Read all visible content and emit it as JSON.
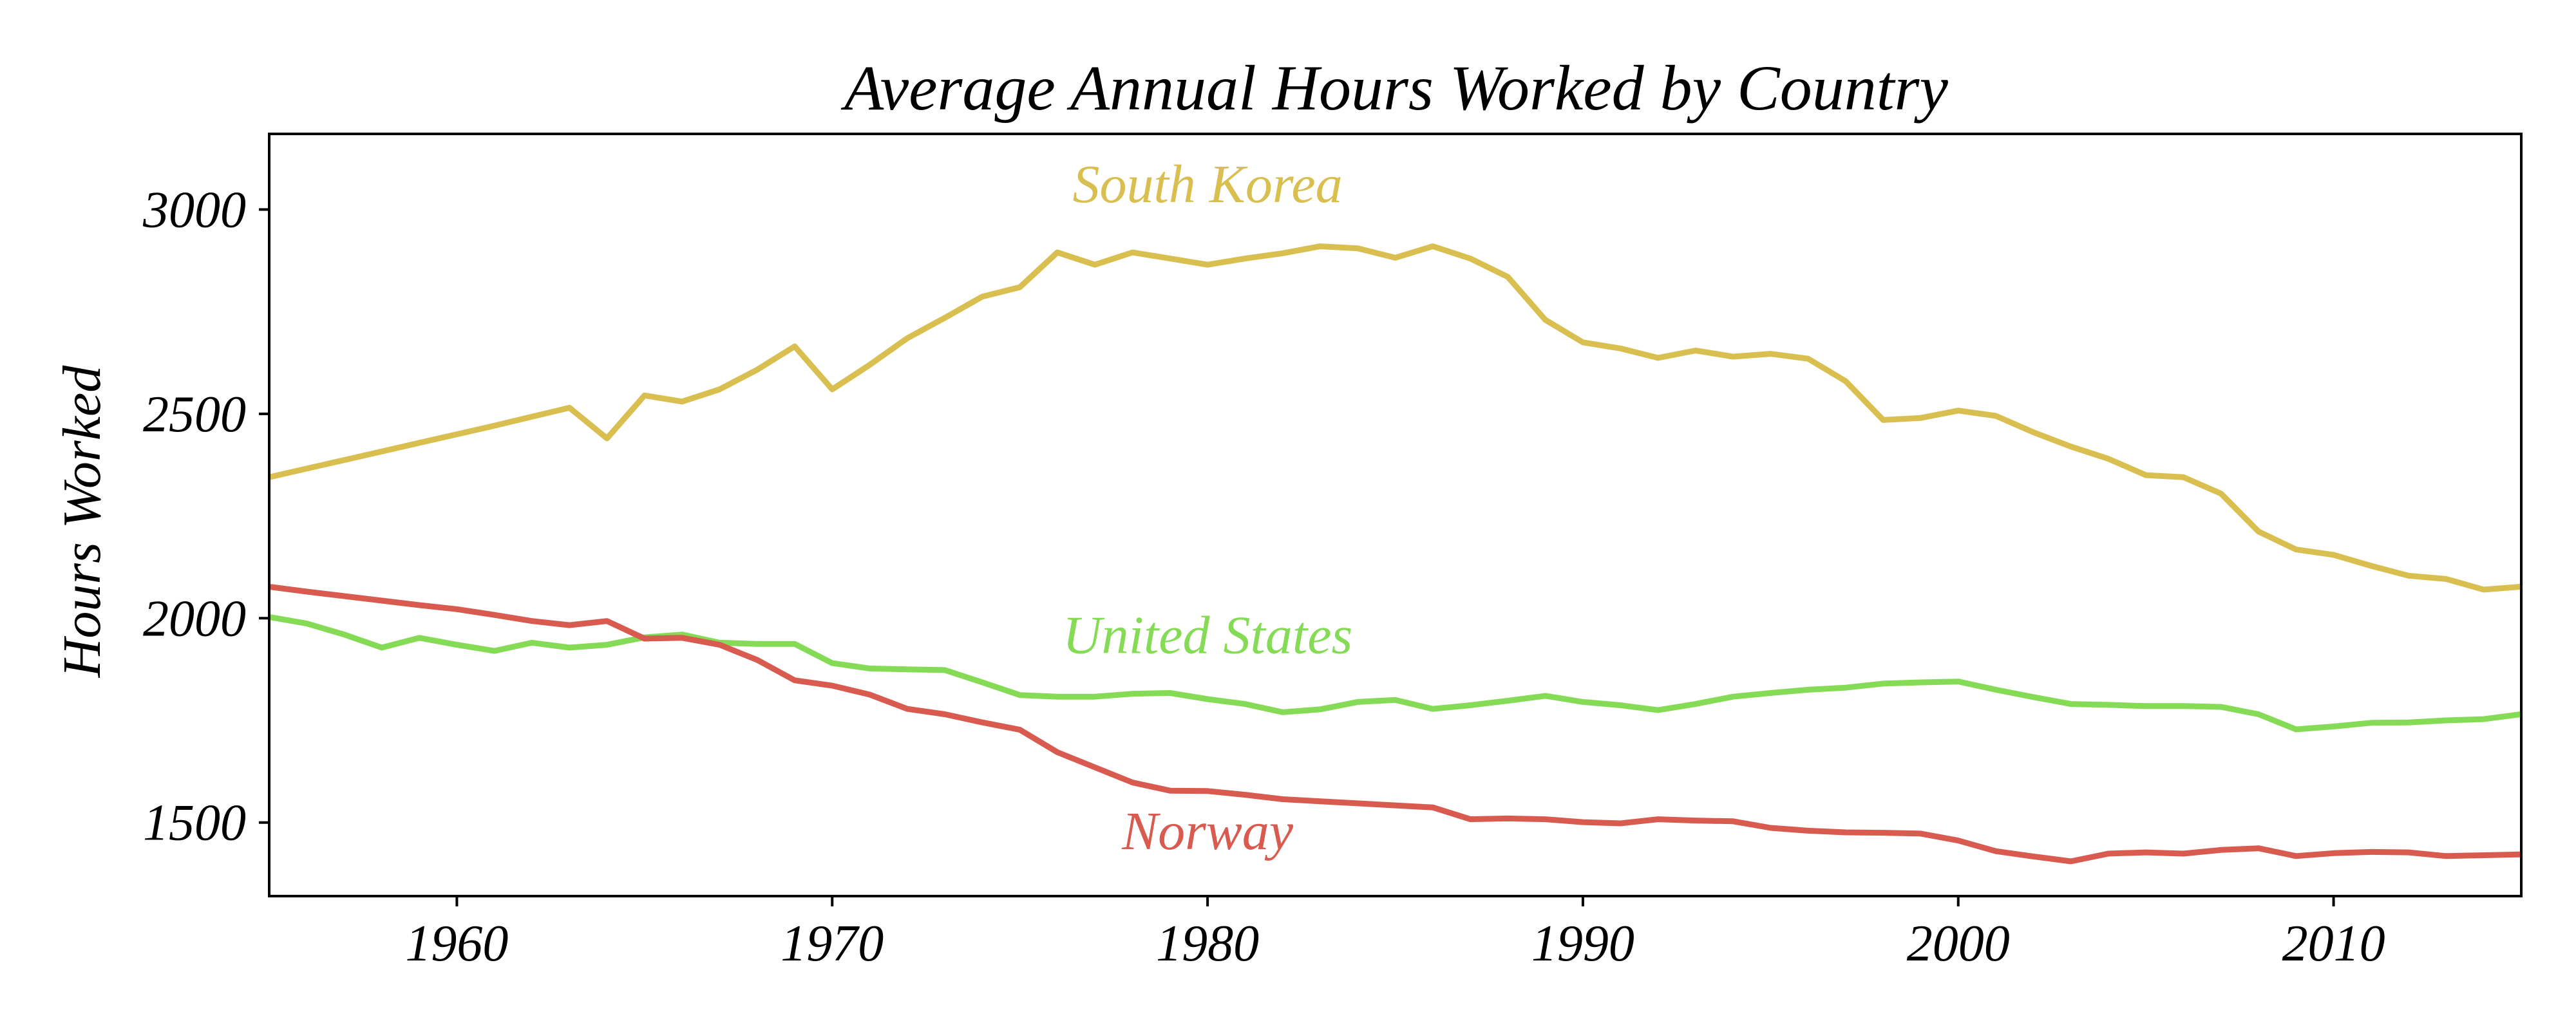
{
  "chart_data": {
    "type": "line",
    "title": "Average Annual Hours Worked by Country",
    "xlabel": "",
    "ylabel": "Hours Worked",
    "xlim": [
      1955,
      2015
    ],
    "ylim": [
      1320,
      3185
    ],
    "xticks": [
      1960,
      1970,
      1980,
      1990,
      2000,
      2010
    ],
    "yticks": [
      1500,
      2000,
      2500,
      3000
    ],
    "grid": false,
    "legend": "inline labels",
    "x": [
      1955,
      1956,
      1957,
      1958,
      1959,
      1960,
      1961,
      1962,
      1963,
      1964,
      1965,
      1966,
      1967,
      1968,
      1969,
      1970,
      1971,
      1972,
      1973,
      1974,
      1975,
      1976,
      1977,
      1978,
      1979,
      1980,
      1981,
      1982,
      1983,
      1984,
      1985,
      1986,
      1987,
      1988,
      1989,
      1990,
      1991,
      1992,
      1993,
      1994,
      1995,
      1996,
      1997,
      1998,
      1999,
      2000,
      2001,
      2002,
      2003,
      2004,
      2005,
      2006,
      2007,
      2008,
      2009,
      2010,
      2011,
      2012,
      2013,
      2014,
      2015
    ],
    "series": [
      {
        "name": "South Korea",
        "color": "#d9bf4f",
        "values": [
          2345,
          2366,
          2387,
          2408,
          2429,
          2450,
          2471,
          2493,
          2515,
          2440,
          2545,
          2530,
          2560,
          2608,
          2665,
          2560,
          2620,
          2685,
          2735,
          2787,
          2810,
          2895,
          2865,
          2895,
          2880,
          2865,
          2880,
          2893,
          2910,
          2905,
          2882,
          2910,
          2880,
          2835,
          2730,
          2675,
          2660,
          2637,
          2655,
          2640,
          2647,
          2635,
          2580,
          2485,
          2490,
          2508,
          2495,
          2455,
          2420,
          2390,
          2350,
          2345,
          2305,
          2212,
          2168,
          2155,
          2128,
          2104,
          2096,
          2070,
          2077
        ]
      },
      {
        "name": "United States",
        "color": "#86db56",
        "values": [
          2003,
          1987,
          1960,
          1928,
          1952,
          1935,
          1920,
          1940,
          1928,
          1935,
          1953,
          1960,
          1940,
          1937,
          1937,
          1890,
          1877,
          1875,
          1873,
          1843,
          1812,
          1808,
          1808,
          1815,
          1817,
          1802,
          1790,
          1770,
          1777,
          1795,
          1800,
          1778,
          1787,
          1798,
          1810,
          1795,
          1787,
          1775,
          1790,
          1808,
          1817,
          1825,
          1830,
          1840,
          1843,
          1845,
          1825,
          1807,
          1790,
          1788,
          1785,
          1785,
          1783,
          1765,
          1728,
          1735,
          1744,
          1745,
          1750,
          1753,
          1765
        ]
      },
      {
        "name": "Norway",
        "color": "#d95b50",
        "values": [
          2077,
          2065,
          2054,
          2043,
          2032,
          2022,
          2008,
          1993,
          1983,
          1993,
          1950,
          1952,
          1935,
          1898,
          1848,
          1835,
          1813,
          1778,
          1765,
          1745,
          1727,
          1672,
          1635,
          1598,
          1578,
          1577,
          1568,
          1557,
          1552,
          1547,
          1542,
          1537,
          1508,
          1510,
          1508,
          1501,
          1498,
          1508,
          1505,
          1503,
          1487,
          1480,
          1476,
          1475,
          1473,
          1456,
          1430,
          1417,
          1405,
          1424,
          1427,
          1424,
          1433,
          1437,
          1418,
          1425,
          1428,
          1427,
          1418,
          1420,
          1422
        ]
      }
    ]
  }
}
